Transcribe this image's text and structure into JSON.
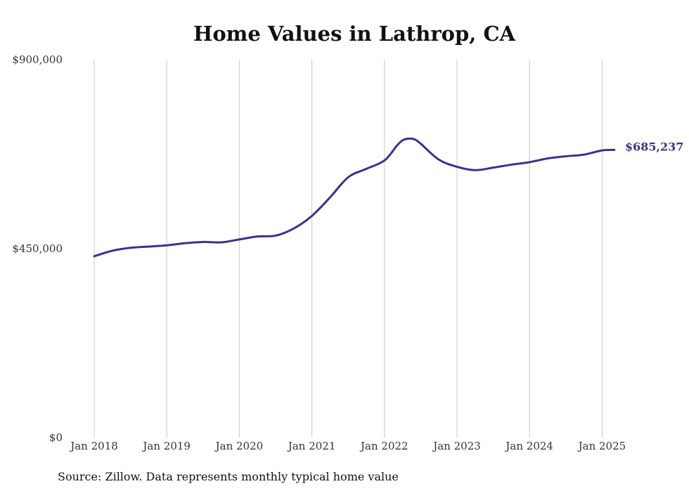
{
  "chart_data": {
    "type": "line",
    "title": "Home Values in Lathrop, CA",
    "source": "Source: Zillow. Data represents monthly typical home value",
    "ylim": [
      0,
      900000
    ],
    "yticks": [
      {
        "value": 0,
        "label": "$0"
      },
      {
        "value": 450000,
        "label": "$450,000"
      },
      {
        "value": 900000,
        "label": "$900,000"
      }
    ],
    "xticks": [
      {
        "value": 2018.0,
        "label": "Jan 2018"
      },
      {
        "value": 2019.0,
        "label": "Jan 2019"
      },
      {
        "value": 2020.0,
        "label": "Jan 2020"
      },
      {
        "value": 2021.0,
        "label": "Jan 2021"
      },
      {
        "value": 2022.0,
        "label": "Jan 2022"
      },
      {
        "value": 2023.0,
        "label": "Jan 2023"
      },
      {
        "value": 2024.0,
        "label": "Jan 2024"
      },
      {
        "value": 2025.0,
        "label": "Jan 2025"
      }
    ],
    "xlim": [
      2018.0,
      2025.17
    ],
    "grid": {
      "vertical": true,
      "horizontal": false
    },
    "line_color": "#3b318f",
    "end_label": "$685,237",
    "series": [
      {
        "dates": [
          "Jan 2018",
          "Apr 2018",
          "Jul 2018",
          "Oct 2018",
          "Jan 2019",
          "Apr 2019",
          "Jul 2019",
          "Oct 2019",
          "Jan 2020",
          "Apr 2020",
          "Jul 2020",
          "Oct 2020",
          "Jan 2021",
          "Apr 2021",
          "Jul 2021",
          "Oct 2021",
          "Jan 2022",
          "Mar 2022",
          "Apr 2022",
          "May 2022",
          "Jun 2022",
          "Jul 2022",
          "Oct 2022",
          "Jan 2023",
          "Apr 2023",
          "Jul 2023",
          "Oct 2023",
          "Jan 2024",
          "Apr 2024",
          "Jul 2024",
          "Oct 2024",
          "Jan 2025",
          "Mar 2025"
        ],
        "x": [
          2018.0,
          2018.25,
          2018.5,
          2018.75,
          2019.0,
          2019.25,
          2019.5,
          2019.75,
          2020.0,
          2020.25,
          2020.5,
          2020.75,
          2021.0,
          2021.25,
          2021.5,
          2021.75,
          2022.0,
          2022.17,
          2022.25,
          2022.33,
          2022.42,
          2022.5,
          2022.75,
          2023.0,
          2023.25,
          2023.5,
          2023.75,
          2024.0,
          2024.25,
          2024.5,
          2024.75,
          2025.0,
          2025.17
        ],
        "y": [
          432000,
          445000,
          452000,
          455000,
          458000,
          463000,
          466000,
          465000,
          472000,
          479000,
          481000,
          498000,
          528000,
          572000,
          620000,
          640000,
          660000,
          695000,
          708000,
          712000,
          710000,
          700000,
          662000,
          645000,
          637000,
          643000,
          650000,
          656000,
          665000,
          670000,
          674000,
          684000,
          685237
        ]
      }
    ]
  }
}
